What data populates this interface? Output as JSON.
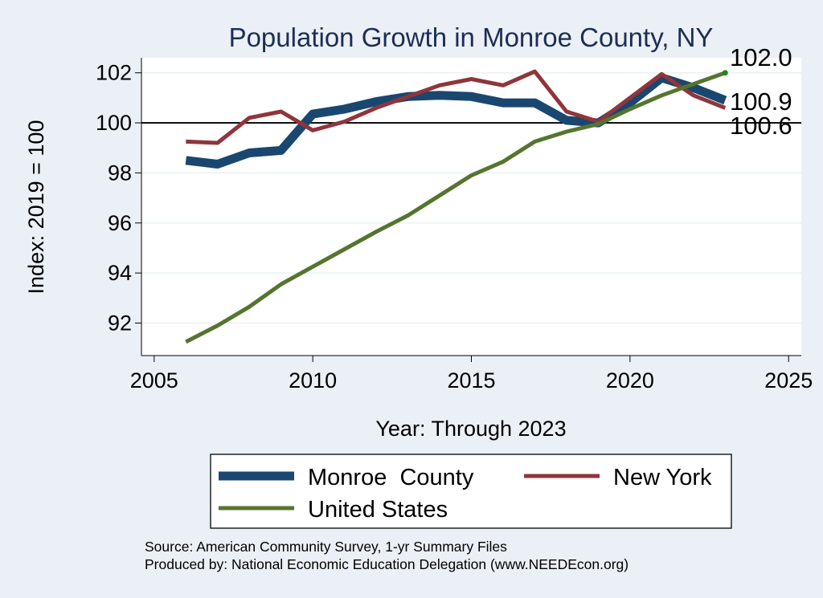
{
  "chart_data": {
    "type": "line",
    "title": "Population Growth in Monroe County, NY",
    "xlabel": "Year: Through 2023",
    "ylabel": "Index: 2019 = 100",
    "xlim": [
      2004.6,
      2025.4
    ],
    "ylim": [
      90.7,
      102.6
    ],
    "xticks": [
      "2005",
      "2010",
      "2015",
      "2020",
      "2025"
    ],
    "yticks": [
      "92",
      "94",
      "96",
      "98",
      "100",
      "102"
    ],
    "reference_line": 100,
    "grid": true,
    "x": [
      2006,
      2007,
      2008,
      2009,
      2010,
      2011,
      2012,
      2013,
      2014,
      2015,
      2016,
      2017,
      2018,
      2019,
      2020,
      2021,
      2022,
      2023
    ],
    "series": [
      {
        "name": "Monroe  County",
        "color": "#1a476f",
        "values": [
          98.5,
          98.35,
          98.8,
          98.9,
          100.35,
          100.55,
          100.85,
          101.05,
          101.1,
          101.05,
          100.8,
          100.8,
          100.1,
          100.0,
          100.8,
          101.8,
          101.4,
          100.9
        ]
      },
      {
        "name": "New York",
        "color": "#90353b",
        "values": [
          99.25,
          99.2,
          100.2,
          100.45,
          99.7,
          100.05,
          100.6,
          101.05,
          101.5,
          101.75,
          101.5,
          102.05,
          100.45,
          100.05,
          101.0,
          101.95,
          101.1,
          100.6
        ]
      },
      {
        "name": "United States",
        "color": "#55752f",
        "values": [
          91.25,
          91.9,
          92.65,
          93.55,
          94.25,
          94.95,
          95.65,
          96.3,
          97.1,
          97.9,
          98.45,
          99.25,
          99.65,
          99.95,
          100.55,
          101.1,
          101.55,
          102.0
        ]
      }
    ],
    "end_labels": [
      "102.0",
      "100.9",
      "100.6"
    ],
    "legend": {
      "placement": "bottom"
    }
  },
  "source": {
    "line1": "Source: American Community Survey, 1-yr Summary Files",
    "line2": "Produced by: National Economic Education Delegation (www.NEEDEcon.org)"
  }
}
